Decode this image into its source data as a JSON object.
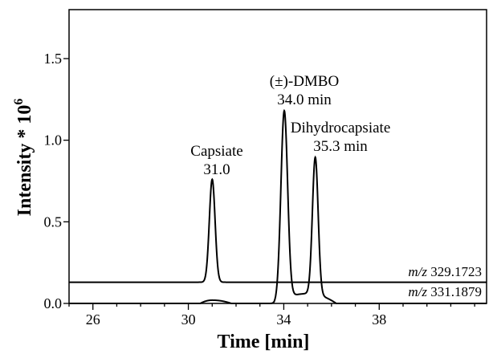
{
  "chart_data": {
    "type": "line",
    "title": "",
    "xlabel": "Time [min]",
    "ylabel": "Intensity * 10",
    "ylabel_superscript": "6",
    "xlim": [
      25,
      42.5
    ],
    "ylim": [
      0,
      1.8
    ],
    "x_ticks": [
      26,
      30,
      34,
      38
    ],
    "x_tick_labels": [
      "26",
      "30",
      "34",
      "38"
    ],
    "y_ticks": [
      0,
      0.5,
      1.0,
      1.5
    ],
    "y_tick_labels": [
      "0.0",
      "0.5",
      "1.0",
      "1.5"
    ],
    "grid": false,
    "series": [
      {
        "name": "m/z 329.1723",
        "baseline": 0.13,
        "peaks": [
          {
            "center": 31.0,
            "height": 0.63,
            "width": 0.12
          }
        ]
      },
      {
        "name": "m/z 331.1879",
        "baseline": 0.0,
        "bumps": [
          {
            "start": 30.5,
            "peak_x": 31.0,
            "end": 31.8,
            "height": 0.02
          },
          {
            "start": 33.6,
            "peak_x": 35.0,
            "end": 36.2,
            "height": 0.06
          }
        ],
        "peaks": [
          {
            "center": 34.02,
            "height": 1.15,
            "width": 0.14
          },
          {
            "center": 35.32,
            "height": 0.84,
            "width": 0.12
          }
        ]
      }
    ],
    "annotations": [
      {
        "id": "capsiate",
        "lines": [
          "Capsiate",
          "31.0"
        ],
        "x": 31.0
      },
      {
        "id": "dmbo",
        "lines": [
          "(±)-DMBO",
          "34.0 min"
        ],
        "x": 34.0
      },
      {
        "id": "dihydrocapsiate",
        "lines": [
          "Dihydrocapsiate",
          "35.3 min"
        ],
        "x": 35.3
      }
    ],
    "trace_labels": [
      {
        "italic": "m/z",
        "rest": "329.1723"
      },
      {
        "italic": "m/z",
        "rest": "331.1879"
      }
    ]
  }
}
